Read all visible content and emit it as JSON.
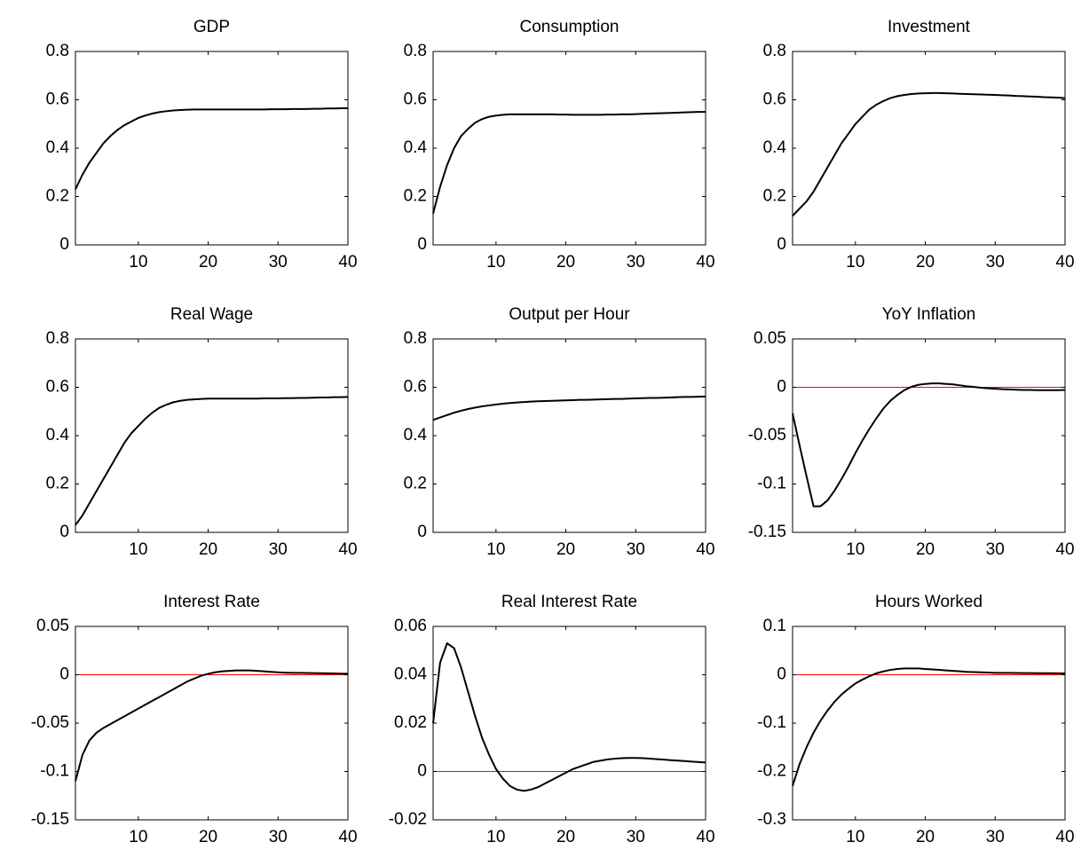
{
  "chart_data": [
    {
      "type": "line",
      "title": "GDP",
      "xlim": [
        1,
        40
      ],
      "xticks": [
        10,
        20,
        30,
        40
      ],
      "ylim": [
        0,
        0.8
      ],
      "yticks": [
        0,
        0.2,
        0.4,
        0.6,
        0.8
      ],
      "color": "#000000",
      "zero_line": {
        "value": 0,
        "color": "#ff0000"
      },
      "x": [
        1,
        2,
        3,
        4,
        5,
        6,
        7,
        8,
        9,
        10,
        11,
        12,
        13,
        14,
        15,
        16,
        17,
        18,
        19,
        20,
        21,
        22,
        23,
        24,
        25,
        26,
        27,
        28,
        29,
        30,
        31,
        32,
        33,
        34,
        35,
        36,
        37,
        38,
        39,
        40
      ],
      "values": [
        0.23,
        0.29,
        0.34,
        0.38,
        0.42,
        0.45,
        0.475,
        0.495,
        0.51,
        0.525,
        0.535,
        0.543,
        0.549,
        0.553,
        0.556,
        0.558,
        0.559,
        0.56,
        0.56,
        0.56,
        0.56,
        0.56,
        0.56,
        0.56,
        0.56,
        0.56,
        0.56,
        0.56,
        0.561,
        0.561,
        0.561,
        0.562,
        0.562,
        0.562,
        0.563,
        0.563,
        0.564,
        0.564,
        0.565,
        0.565
      ]
    },
    {
      "type": "line",
      "title": "Consumption",
      "xlim": [
        1,
        40
      ],
      "xticks": [
        10,
        20,
        30,
        40
      ],
      "ylim": [
        0,
        0.8
      ],
      "yticks": [
        0,
        0.2,
        0.4,
        0.6,
        0.8
      ],
      "color": "#000000",
      "zero_line": {
        "value": 0,
        "color": "#ff0000"
      },
      "x": [
        1,
        2,
        3,
        4,
        5,
        6,
        7,
        8,
        9,
        10,
        11,
        12,
        13,
        14,
        15,
        16,
        17,
        18,
        19,
        20,
        21,
        22,
        23,
        24,
        25,
        26,
        27,
        28,
        29,
        30,
        31,
        32,
        33,
        34,
        35,
        36,
        37,
        38,
        39,
        40
      ],
      "values": [
        0.13,
        0.24,
        0.33,
        0.4,
        0.45,
        0.48,
        0.505,
        0.52,
        0.53,
        0.535,
        0.538,
        0.54,
        0.54,
        0.54,
        0.54,
        0.54,
        0.54,
        0.54,
        0.539,
        0.539,
        0.538,
        0.538,
        0.538,
        0.538,
        0.538,
        0.539,
        0.539,
        0.54,
        0.54,
        0.541,
        0.542,
        0.543,
        0.544,
        0.545,
        0.546,
        0.547,
        0.548,
        0.549,
        0.55,
        0.55
      ]
    },
    {
      "type": "line",
      "title": "Investment",
      "xlim": [
        1,
        40
      ],
      "xticks": [
        10,
        20,
        30,
        40
      ],
      "ylim": [
        0,
        0.8
      ],
      "yticks": [
        0,
        0.2,
        0.4,
        0.6,
        0.8
      ],
      "color": "#000000",
      "zero_line": {
        "value": 0,
        "color": "#ff0000"
      },
      "x": [
        1,
        2,
        3,
        4,
        5,
        6,
        7,
        8,
        9,
        10,
        11,
        12,
        13,
        14,
        15,
        16,
        17,
        18,
        19,
        20,
        21,
        22,
        23,
        24,
        25,
        26,
        27,
        28,
        29,
        30,
        31,
        32,
        33,
        34,
        35,
        36,
        37,
        38,
        39,
        40
      ],
      "values": [
        0.12,
        0.15,
        0.18,
        0.22,
        0.27,
        0.32,
        0.37,
        0.42,
        0.46,
        0.5,
        0.53,
        0.56,
        0.58,
        0.595,
        0.607,
        0.615,
        0.62,
        0.624,
        0.626,
        0.627,
        0.628,
        0.628,
        0.627,
        0.626,
        0.625,
        0.624,
        0.623,
        0.622,
        0.621,
        0.62,
        0.619,
        0.618,
        0.616,
        0.615,
        0.614,
        0.613,
        0.611,
        0.61,
        0.609,
        0.607
      ]
    },
    {
      "type": "line",
      "title": "Real Wage",
      "xlim": [
        1,
        40
      ],
      "xticks": [
        10,
        20,
        30,
        40
      ],
      "ylim": [
        0,
        0.8
      ],
      "yticks": [
        0,
        0.2,
        0.4,
        0.6,
        0.8
      ],
      "color": "#000000",
      "zero_line": {
        "value": 0,
        "color": "#ff0000"
      },
      "x": [
        1,
        2,
        3,
        4,
        5,
        6,
        7,
        8,
        9,
        10,
        11,
        12,
        13,
        14,
        15,
        16,
        17,
        18,
        19,
        20,
        21,
        22,
        23,
        24,
        25,
        26,
        27,
        28,
        29,
        30,
        31,
        32,
        33,
        34,
        35,
        36,
        37,
        38,
        39,
        40
      ],
      "values": [
        0.03,
        0.07,
        0.12,
        0.17,
        0.22,
        0.27,
        0.32,
        0.37,
        0.41,
        0.44,
        0.47,
        0.495,
        0.515,
        0.528,
        0.538,
        0.544,
        0.548,
        0.55,
        0.552,
        0.553,
        0.553,
        0.553,
        0.553,
        0.553,
        0.553,
        0.553,
        0.553,
        0.554,
        0.554,
        0.554,
        0.555,
        0.555,
        0.556,
        0.556,
        0.557,
        0.558,
        0.558,
        0.559,
        0.559,
        0.56
      ]
    },
    {
      "type": "line",
      "title": "Output per Hour",
      "xlim": [
        1,
        40
      ],
      "xticks": [
        10,
        20,
        30,
        40
      ],
      "ylim": [
        0,
        0.8
      ],
      "yticks": [
        0,
        0.2,
        0.4,
        0.6,
        0.8
      ],
      "color": "#000000",
      "zero_line": {
        "value": 0,
        "color": "#ff0000"
      },
      "x": [
        1,
        2,
        3,
        4,
        5,
        6,
        7,
        8,
        9,
        10,
        11,
        12,
        13,
        14,
        15,
        16,
        17,
        18,
        19,
        20,
        21,
        22,
        23,
        24,
        25,
        26,
        27,
        28,
        29,
        30,
        31,
        32,
        33,
        34,
        35,
        36,
        37,
        38,
        39,
        40
      ],
      "values": [
        0.465,
        0.475,
        0.485,
        0.495,
        0.503,
        0.51,
        0.516,
        0.521,
        0.525,
        0.529,
        0.532,
        0.535,
        0.537,
        0.539,
        0.541,
        0.542,
        0.543,
        0.544,
        0.545,
        0.546,
        0.547,
        0.548,
        0.548,
        0.549,
        0.55,
        0.551,
        0.552,
        0.552,
        0.553,
        0.554,
        0.555,
        0.556,
        0.556,
        0.557,
        0.558,
        0.559,
        0.56,
        0.56,
        0.561,
        0.562
      ]
    },
    {
      "type": "line",
      "title": "YoY Inflation",
      "xlim": [
        1,
        40
      ],
      "xticks": [
        10,
        20,
        30,
        40
      ],
      "ylim": [
        -0.15,
        0.05
      ],
      "yticks": [
        -0.15,
        -0.1,
        -0.05,
        0,
        0.05
      ],
      "color": "#000000",
      "zero_line": {
        "value": 0,
        "color": "#ff0000"
      },
      "x": [
        1,
        2,
        3,
        4,
        5,
        6,
        7,
        8,
        9,
        10,
        11,
        12,
        13,
        14,
        15,
        16,
        17,
        18,
        19,
        20,
        21,
        22,
        23,
        24,
        25,
        26,
        27,
        28,
        29,
        30,
        31,
        32,
        33,
        34,
        35,
        36,
        37,
        38,
        39,
        40
      ],
      "values": [
        -0.027,
        -0.06,
        -0.092,
        -0.123,
        -0.123,
        -0.117,
        -0.107,
        -0.095,
        -0.082,
        -0.068,
        -0.055,
        -0.043,
        -0.032,
        -0.022,
        -0.014,
        -0.008,
        -0.003,
        0.0005,
        0.0025,
        0.0035,
        0.004,
        0.004,
        0.0035,
        0.003,
        0.002,
        0.001,
        0.0003,
        -0.0005,
        -0.001,
        -0.0015,
        -0.002,
        -0.0022,
        -0.0025,
        -0.0027,
        -0.0028,
        -0.003,
        -0.003,
        -0.003,
        -0.003,
        -0.0028
      ]
    },
    {
      "type": "line",
      "title": "Interest Rate",
      "xlim": [
        1,
        40
      ],
      "xticks": [
        10,
        20,
        30,
        40
      ],
      "ylim": [
        -0.15,
        0.05
      ],
      "yticks": [
        -0.15,
        -0.1,
        -0.05,
        0,
        0.05
      ],
      "color": "#000000",
      "zero_line": {
        "value": 0,
        "color": "#ff0000"
      },
      "x": [
        1,
        2,
        3,
        4,
        5,
        6,
        7,
        8,
        9,
        10,
        11,
        12,
        13,
        14,
        15,
        16,
        17,
        18,
        19,
        20,
        21,
        22,
        23,
        24,
        25,
        26,
        27,
        28,
        29,
        30,
        31,
        32,
        33,
        34,
        35,
        36,
        37,
        38,
        39,
        40
      ],
      "values": [
        -0.11,
        -0.083,
        -0.068,
        -0.06,
        -0.055,
        -0.051,
        -0.047,
        -0.043,
        -0.039,
        -0.035,
        -0.031,
        -0.027,
        -0.023,
        -0.019,
        -0.015,
        -0.011,
        -0.007,
        -0.004,
        -0.001,
        0.001,
        0.0025,
        0.0035,
        0.004,
        0.0045,
        0.0045,
        0.0045,
        0.004,
        0.0035,
        0.003,
        0.0025,
        0.0022,
        0.002,
        0.0019,
        0.0018,
        0.0017,
        0.0016,
        0.0015,
        0.0014,
        0.0012,
        0.001
      ]
    },
    {
      "type": "line",
      "title": "Real Interest Rate",
      "xlim": [
        1,
        40
      ],
      "xticks": [
        10,
        20,
        30,
        40
      ],
      "ylim": [
        -0.02,
        0.06
      ],
      "yticks": [
        -0.02,
        0,
        0.02,
        0.04,
        0.06
      ],
      "color": "#000000",
      "zero_line": {
        "value": 0,
        "color": "#ff0000"
      },
      "x": [
        1,
        2,
        3,
        4,
        5,
        6,
        7,
        8,
        9,
        10,
        11,
        12,
        13,
        14,
        15,
        16,
        17,
        18,
        19,
        20,
        21,
        22,
        23,
        24,
        25,
        26,
        27,
        28,
        29,
        30,
        31,
        32,
        33,
        34,
        35,
        36,
        37,
        38,
        39,
        40
      ],
      "values": [
        0.02,
        0.045,
        0.053,
        0.051,
        0.043,
        0.033,
        0.023,
        0.014,
        0.007,
        0.001,
        -0.003,
        -0.006,
        -0.0075,
        -0.008,
        -0.0075,
        -0.0065,
        -0.005,
        -0.0035,
        -0.002,
        -0.0005,
        0.001,
        0.002,
        0.003,
        0.004,
        0.0045,
        0.005,
        0.0053,
        0.0055,
        0.0056,
        0.0056,
        0.0055,
        0.0053,
        0.0051,
        0.0049,
        0.0047,
        0.0045,
        0.0043,
        0.0041,
        0.0039,
        0.0037
      ]
    },
    {
      "type": "line",
      "title": "Hours Worked",
      "xlim": [
        1,
        40
      ],
      "xticks": [
        10,
        20,
        30,
        40
      ],
      "ylim": [
        -0.3,
        0.1
      ],
      "yticks": [
        -0.3,
        -0.2,
        -0.1,
        0,
        0.1
      ],
      "color": "#000000",
      "zero_line": {
        "value": 0,
        "color": "#ff0000"
      },
      "x": [
        1,
        2,
        3,
        4,
        5,
        6,
        7,
        8,
        9,
        10,
        11,
        12,
        13,
        14,
        15,
        16,
        17,
        18,
        19,
        20,
        21,
        22,
        23,
        24,
        25,
        26,
        27,
        28,
        29,
        30,
        31,
        32,
        33,
        34,
        35,
        36,
        37,
        38,
        39,
        40
      ],
      "values": [
        -0.23,
        -0.185,
        -0.15,
        -0.12,
        -0.095,
        -0.074,
        -0.056,
        -0.041,
        -0.029,
        -0.018,
        -0.01,
        -0.003,
        0.003,
        0.007,
        0.01,
        0.012,
        0.013,
        0.013,
        0.013,
        0.012,
        0.011,
        0.01,
        0.009,
        0.008,
        0.007,
        0.006,
        0.0055,
        0.005,
        0.0045,
        0.004,
        0.004,
        0.0038,
        0.0036,
        0.0035,
        0.0034,
        0.0033,
        0.0032,
        0.0031,
        0.003,
        0.003
      ]
    }
  ]
}
